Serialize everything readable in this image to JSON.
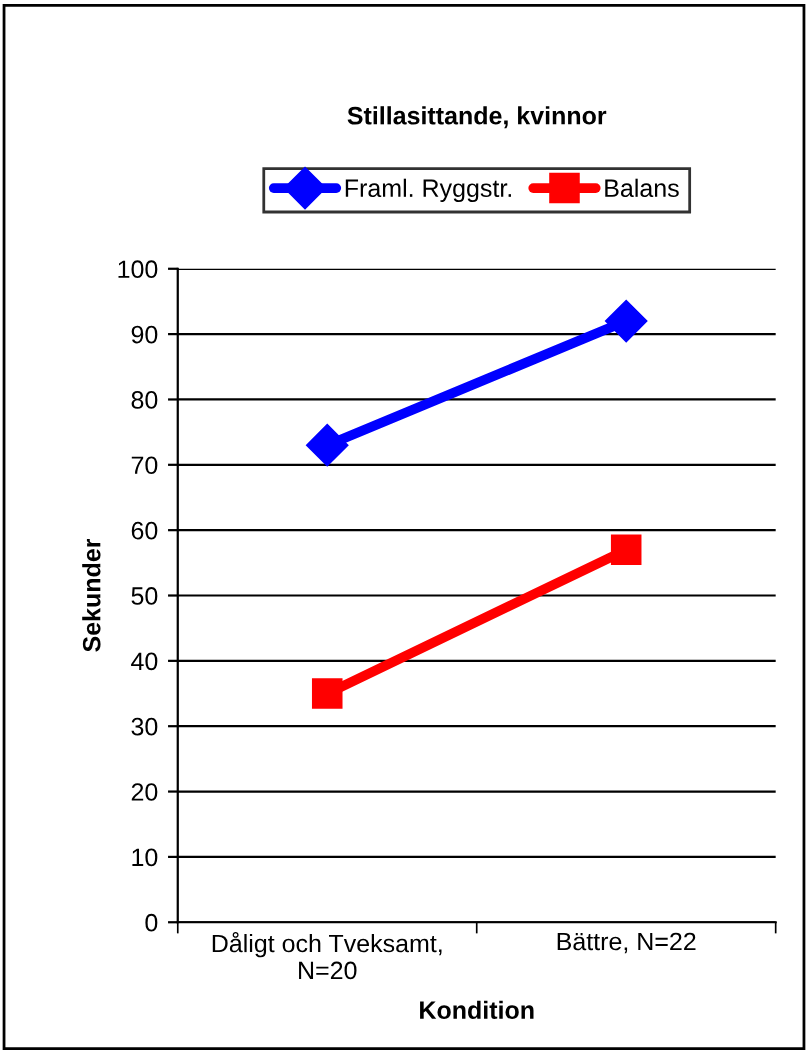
{
  "chart_data": {
    "type": "line",
    "title": "Stillasittande, kvinnor",
    "xlabel": "Kondition",
    "ylabel": "Sekunder",
    "categories": [
      "Dåligt och Tveksamt,\nN=20",
      "Bättre, N=22"
    ],
    "series": [
      {
        "name": "Framl. Ryggstr.",
        "color": "#0000ff",
        "values": [
          73,
          92
        ],
        "marker": "diamond"
      },
      {
        "name": "Balans",
        "color": "#ff0000",
        "values": [
          35,
          57
        ],
        "marker": "square"
      }
    ],
    "ylim": [
      0,
      100
    ],
    "yticks": [
      0,
      10,
      20,
      30,
      40,
      50,
      60,
      70,
      80,
      90,
      100
    ],
    "grid": "y",
    "legend": "top",
    "line_style": "solid"
  }
}
